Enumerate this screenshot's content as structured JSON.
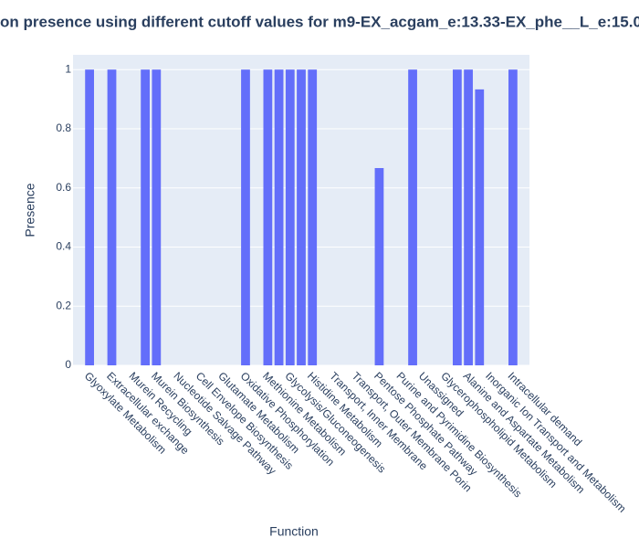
{
  "chart_data": {
    "type": "bar",
    "title": "on presence using different cutoff values for m9-EX_acgam_e:13.33-EX_phe__L_e:15.0",
    "x_label": "Function",
    "y_label": "Presence",
    "categories": [
      "Glyoxylate Metabolism",
      null,
      "Extracellular exchange",
      null,
      "Murein Recycling",
      null,
      "Murein Biosynthesis",
      null,
      "Nucleotide Salvage Pathway",
      null,
      "Cell Envelope Biosynthesis",
      null,
      "Glutamate Metabolism",
      null,
      "Oxidative Phosphorylation",
      null,
      "Methionine Metabolism",
      null,
      "Glycolysis/Gluconeogenesis",
      null,
      "Histidine Metabolism",
      null,
      "Transport, Inner Membrane",
      null,
      "Transport, Outer Membrane Porin",
      null,
      "Pentose Phosphate Pathway",
      null,
      "Purine and Pyrimidine Biosynthesis",
      null,
      "Unassigned",
      null,
      "Glycerophospholipid Metabolism",
      null,
      "Alanine and Aspartate Metabolism",
      null,
      "Inorganic Ion Transport and Metabolism",
      null,
      "Intracellular demand"
    ],
    "values": [
      1,
      0,
      1,
      0,
      0,
      1,
      1,
      0,
      0,
      0,
      0,
      0,
      0,
      0,
      1,
      0,
      1,
      1,
      1,
      1,
      1,
      0,
      0,
      0,
      0,
      0,
      0.667,
      0,
      0,
      1,
      0,
      0,
      0,
      1,
      1,
      0.933,
      0,
      0,
      1
    ],
    "color": "#636efa",
    "ylim": [
      0,
      1.05
    ],
    "yticks": [
      0,
      0.2,
      0.4,
      0.6,
      0.8,
      1
    ],
    "grid": true
  }
}
